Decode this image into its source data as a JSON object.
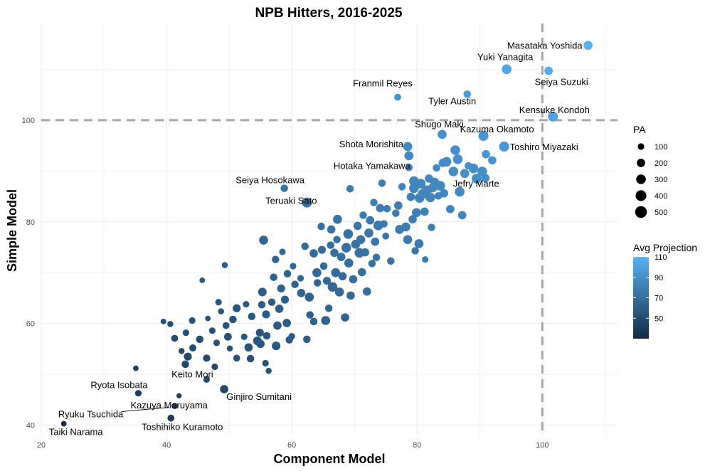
{
  "chart_data": {
    "type": "scatter",
    "title": "NPB Hitters, 2016-2025",
    "xlabel": "Component Model",
    "ylabel": "Simple Model",
    "xlim": [
      20,
      112
    ],
    "ylim": [
      38,
      119
    ],
    "xticks": [
      20,
      40,
      60,
      80,
      100
    ],
    "yticks": [
      40,
      60,
      80,
      100
    ],
    "reference_lines": {
      "x": 100,
      "y": 100,
      "style": "dashed",
      "color": "#a6a6a6"
    },
    "grid": true,
    "size_legend": {
      "title": "PA",
      "values": [
        100,
        200,
        300,
        400,
        500
      ]
    },
    "color_legend": {
      "title": "Avg Projection",
      "range": [
        30,
        110
      ],
      "ticks": [
        50,
        70,
        90,
        110
      ],
      "low_color": "#132b43",
      "high_color": "#56b1f7"
    },
    "labeled_points": [
      {
        "name": "Masataka Yoshida",
        "x": 107.3,
        "y": 114.7,
        "pa": 250
      },
      {
        "name": "Yuki Yanagita",
        "x": 94.3,
        "y": 110.0,
        "pa": 300
      },
      {
        "name": "Seiya Suzuki",
        "x": 101.0,
        "y": 109.7,
        "pa": 200
      },
      {
        "name": "Franmil Reyes",
        "x": 76.9,
        "y": 104.5,
        "pa": 120
      },
      {
        "name": "Tyler Austin",
        "x": 88.0,
        "y": 105.1,
        "pa": 150
      },
      {
        "name": "Kensuke Kondoh",
        "x": 101.7,
        "y": 100.7,
        "pa": 330
      },
      {
        "name": "Shugo Maki",
        "x": 84.0,
        "y": 97.2,
        "pa": 250
      },
      {
        "name": "Kazuma Okamoto",
        "x": 90.6,
        "y": 96.9,
        "pa": 330
      },
      {
        "name": "Shota Morishita",
        "x": 78.5,
        "y": 94.8,
        "pa": 250
      },
      {
        "name": "Toshiro Miyazaki",
        "x": 93.9,
        "y": 94.8,
        "pa": 330
      },
      {
        "name": "Hotaka Yamakawa",
        "x": 78.7,
        "y": 90.7,
        "pa": 150
      },
      {
        "name": "Jefry Marte",
        "x": 90.9,
        "y": 88.6,
        "pa": 200
      },
      {
        "name": "Seiya Hosokawa",
        "x": 58.8,
        "y": 86.6,
        "pa": 150
      },
      {
        "name": "Teruaki Sato",
        "x": 62.4,
        "y": 83.8,
        "pa": 330
      },
      {
        "name": "Keito Mori",
        "x": 46.4,
        "y": 49.0,
        "pa": 100
      },
      {
        "name": "Ryota Isobata",
        "x": 35.5,
        "y": 46.3,
        "pa": 100
      },
      {
        "name": "Ginjiro Sumitani",
        "x": 49.2,
        "y": 47.1,
        "pa": 200
      },
      {
        "name": "Kazuya Maruyama",
        "x": 42.0,
        "y": 45.8,
        "pa": 50
      },
      {
        "name": "Ryuku Tsuchida",
        "x": 41.3,
        "y": 43.8,
        "pa": 80
      },
      {
        "name": "Toshihiko Kuramoto",
        "x": 40.7,
        "y": 41.4,
        "pa": 120
      },
      {
        "name": "Taiki Narama",
        "x": 23.6,
        "y": 40.3,
        "pa": 60
      }
    ],
    "points": [
      [
        35.1,
        51.2,
        60
      ],
      [
        39.5,
        60.4,
        60
      ],
      [
        40.6,
        59.9,
        80
      ],
      [
        41.3,
        57.1,
        120
      ],
      [
        42.4,
        54.6,
        80
      ],
      [
        43.0,
        52.0,
        150
      ],
      [
        43.4,
        53.5,
        180
      ],
      [
        43.1,
        58.2,
        100
      ],
      [
        44.1,
        60.6,
        100
      ],
      [
        44.2,
        55.2,
        130
      ],
      [
        45.3,
        56.9,
        150
      ],
      [
        46.4,
        53.2,
        140
      ],
      [
        45.7,
        68.5,
        60
      ],
      [
        46.6,
        61.0,
        60
      ],
      [
        47.3,
        58.6,
        100
      ],
      [
        47.7,
        51.5,
        100
      ],
      [
        48.0,
        56.2,
        100
      ],
      [
        48.3,
        64.2,
        100
      ],
      [
        48.7,
        62.4,
        80
      ],
      [
        49.3,
        71.5,
        80
      ],
      [
        49.5,
        59.6,
        120
      ],
      [
        49.8,
        57.4,
        160
      ],
      [
        50.1,
        55.1,
        80
      ],
      [
        50.6,
        60.8,
        150
      ],
      [
        51.2,
        63.0,
        180
      ],
      [
        51.2,
        53.2,
        120
      ],
      [
        52.4,
        57.4,
        100
      ],
      [
        52.7,
        63.8,
        100
      ],
      [
        53.1,
        55.3,
        200
      ],
      [
        53.4,
        53.1,
        150
      ],
      [
        53.6,
        61.4,
        150
      ],
      [
        54.5,
        56.6,
        220
      ],
      [
        54.9,
        58.2,
        180
      ],
      [
        55.0,
        56.0,
        200
      ],
      [
        55.2,
        63.7,
        150
      ],
      [
        55.3,
        66.2,
        220
      ],
      [
        55.5,
        76.4,
        250
      ],
      [
        55.9,
        61.8,
        180
      ],
      [
        55.8,
        52.2,
        100
      ],
      [
        56.0,
        57.6,
        150
      ],
      [
        56.3,
        50.7,
        80
      ],
      [
        56.8,
        64.2,
        150
      ],
      [
        57.1,
        69.1,
        150
      ],
      [
        57.4,
        72.6,
        150
      ],
      [
        57.5,
        55.6,
        220
      ],
      [
        57.7,
        59.6,
        200
      ],
      [
        58.0,
        62.9,
        200
      ],
      [
        58.3,
        66.9,
        180
      ],
      [
        58.5,
        74.1,
        100
      ],
      [
        58.9,
        64.7,
        180
      ],
      [
        59.2,
        60.1,
        200
      ],
      [
        59.3,
        69.8,
        150
      ],
      [
        59.6,
        56.8,
        150
      ],
      [
        60.0,
        57.5,
        100
      ],
      [
        60.2,
        71.3,
        100
      ],
      [
        60.5,
        67.7,
        150
      ],
      [
        61.4,
        68.9,
        100
      ],
      [
        61.5,
        66.0,
        200
      ],
      [
        62.1,
        75.2,
        150
      ],
      [
        62.4,
        56.9,
        150
      ],
      [
        62.8,
        65.2,
        250
      ],
      [
        62.9,
        61.7,
        150
      ],
      [
        63.5,
        73.8,
        200
      ],
      [
        63.5,
        60.4,
        150
      ],
      [
        64.0,
        70.0,
        250
      ],
      [
        64.1,
        68.0,
        150
      ],
      [
        64.7,
        79.1,
        150
      ],
      [
        64.8,
        74.5,
        180
      ],
      [
        65.1,
        71.3,
        150
      ],
      [
        65.4,
        60.6,
        250
      ],
      [
        65.6,
        68.4,
        180
      ],
      [
        65.9,
        63.0,
        150
      ],
      [
        66.2,
        75.4,
        150
      ],
      [
        66.3,
        78.5,
        200
      ],
      [
        66.5,
        67.2,
        300
      ],
      [
        66.8,
        73.9,
        200
      ],
      [
        67.0,
        70.0,
        250
      ],
      [
        67.2,
        76.5,
        150
      ],
      [
        67.3,
        80.5,
        250
      ],
      [
        67.6,
        66.2,
        250
      ],
      [
        67.9,
        73.1,
        200
      ],
      [
        68.1,
        69.3,
        200
      ],
      [
        68.5,
        61.2,
        200
      ],
      [
        68.7,
        74.9,
        300
      ],
      [
        69.0,
        77.6,
        300
      ],
      [
        69.1,
        71.9,
        250
      ],
      [
        69.3,
        86.5,
        150
      ],
      [
        69.4,
        65.5,
        200
      ],
      [
        69.8,
        68.7,
        200
      ],
      [
        70.2,
        75.6,
        250
      ],
      [
        70.5,
        79.2,
        200
      ],
      [
        70.8,
        73.9,
        300
      ],
      [
        71.0,
        76.5,
        250
      ],
      [
        71.2,
        70.1,
        200
      ],
      [
        71.4,
        81.3,
        150
      ],
      [
        71.7,
        74.0,
        200
      ],
      [
        72.0,
        66.3,
        200
      ],
      [
        72.3,
        77.8,
        250
      ],
      [
        72.5,
        80.3,
        200
      ],
      [
        72.8,
        71.8,
        150
      ],
      [
        73.1,
        83.8,
        150
      ],
      [
        73.3,
        76.1,
        200
      ],
      [
        73.5,
        73.0,
        150
      ],
      [
        73.8,
        79.3,
        300
      ],
      [
        74.1,
        82.7,
        200
      ],
      [
        74.4,
        87.6,
        150
      ],
      [
        74.7,
        79.6,
        150
      ],
      [
        75.0,
        77.2,
        120
      ],
      [
        75.2,
        82.6,
        150
      ],
      [
        75.8,
        72.3,
        150
      ],
      [
        76.6,
        81.7,
        150
      ],
      [
        77.0,
        83.2,
        200
      ],
      [
        77.2,
        78.5,
        250
      ],
      [
        77.6,
        86.9,
        150
      ],
      [
        78.2,
        79.0,
        250
      ],
      [
        78.5,
        76.5,
        250
      ],
      [
        78.7,
        93.0,
        250
      ],
      [
        79.0,
        84.9,
        200
      ],
      [
        79.3,
        80.5,
        200
      ],
      [
        79.5,
        86.6,
        300
      ],
      [
        79.5,
        88.0,
        300
      ],
      [
        79.9,
        81.8,
        250
      ],
      [
        80.3,
        75.7,
        250
      ],
      [
        80.4,
        84.7,
        300
      ],
      [
        80.6,
        87.5,
        300
      ],
      [
        80.9,
        85.5,
        300
      ],
      [
        81.2,
        82.0,
        200
      ],
      [
        81.6,
        86.2,
        300
      ],
      [
        81.9,
        88.5,
        200
      ],
      [
        82.1,
        84.8,
        300
      ],
      [
        82.3,
        78.9,
        150
      ],
      [
        82.5,
        86.7,
        250
      ],
      [
        82.8,
        87.8,
        250
      ],
      [
        83.1,
        90.6,
        150
      ],
      [
        83.4,
        85.1,
        150
      ],
      [
        83.7,
        87.1,
        300
      ],
      [
        84.1,
        91.6,
        200
      ],
      [
        84.3,
        85.6,
        200
      ],
      [
        84.7,
        91.8,
        300
      ],
      [
        85.3,
        82.5,
        200
      ],
      [
        85.8,
        89.9,
        300
      ],
      [
        86.1,
        94.1,
        300
      ],
      [
        86.5,
        92.3,
        300
      ],
      [
        86.8,
        85.9,
        300
      ],
      [
        87.2,
        81.3,
        200
      ],
      [
        87.6,
        89.5,
        250
      ],
      [
        88.2,
        91.0,
        150
      ],
      [
        89.0,
        90.5,
        300
      ],
      [
        89.5,
        88.5,
        300
      ],
      [
        90.4,
        89.9,
        300
      ],
      [
        91.0,
        93.3,
        200
      ],
      [
        92.0,
        92.1,
        200
      ],
      [
        79.7,
        74.3,
        150
      ],
      [
        81.3,
        72.6,
        100
      ]
    ]
  }
}
